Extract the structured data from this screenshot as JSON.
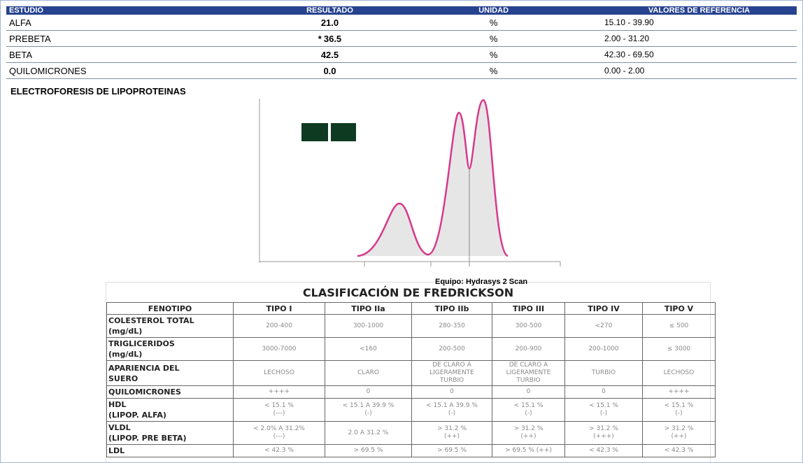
{
  "report": {
    "headers": [
      "ESTUDIO",
      "RESULTADO",
      "UNIDAD",
      "VALORES DE REFERENCIA"
    ],
    "rows": [
      {
        "study": "ALFA",
        "flag": "",
        "result": "21.0",
        "unit": "%",
        "reference": "15.10 - 39.90"
      },
      {
        "study": "PREBETA",
        "flag": "*",
        "result": "36.5",
        "unit": "%",
        "reference": "2.00 - 31.20"
      },
      {
        "study": "BETA",
        "flag": "",
        "result": "42.5",
        "unit": "%",
        "reference": "42.30 - 69.50"
      },
      {
        "study": "QUILOMICRONES",
        "flag": "",
        "result": "0.0",
        "unit": "%",
        "reference": "0.00 - 2.00"
      }
    ],
    "section": "ELECTROFORESIS DE LIPOPROTEINAS",
    "equipment": "Equipo: Hydrasys 2 Scan"
  },
  "fredrickson": {
    "title": "CLASIFICACIÓN DE FREDRICKSON",
    "headers": [
      "FENOTIPO",
      "TIPO I",
      "TIPO IIa",
      "TIPO IIb",
      "TIPO III",
      "TIPO IV",
      "TIPO V"
    ],
    "rows": [
      [
        "COLESTEROL TOTAL\n(mg/dL)",
        "200-400",
        "300-1000",
        "280-350",
        "300-500",
        "<270",
        "≤ 500"
      ],
      [
        "TRIGLICERIDOS\n(mg/dL)",
        "3000-7000",
        "<160",
        "200-500",
        "200-900",
        "200-1000",
        "≤ 3000"
      ],
      [
        "APARIENCIA DEL\nSUERO",
        "LECHOSO",
        "CLARO",
        "DE CLARO A\nLIGERAMENTE\nTURBIO",
        "DE CLARO A\nLIGERAMENTE\nTURBIO",
        "TURBIO",
        "LECHOSO"
      ],
      [
        "QUILOMICRONES",
        "++++",
        "0",
        "0",
        "0",
        "0",
        "++++"
      ],
      [
        "HDL\n(LIPOP. ALFA)",
        "< 15.1 %\n(---)",
        "< 15.1 A 39.9 %\n(-)",
        "< 15.1 A 39.9 %\n(-)",
        "< 15.1 %\n(-)",
        "< 15.1 %\n(-)",
        "< 15.1 %\n(-)"
      ],
      [
        "VLDL\n(LIPOP. PRE BETA)",
        "< 2.0%   A 31.2%\n(---)",
        "2.0 A 31.2 %",
        "> 31.2 %\n(++)",
        "> 31.2 %\n(++)",
        "> 31.2 %\n(+++)",
        "> 31.2 %\n(++)"
      ],
      [
        "LDL",
        "< 42.3 %",
        "> 69.5 %",
        "> 69.5 %",
        "> 69.5 % (++)",
        "< 42.3 %",
        "< 42.3 %"
      ]
    ]
  }
}
